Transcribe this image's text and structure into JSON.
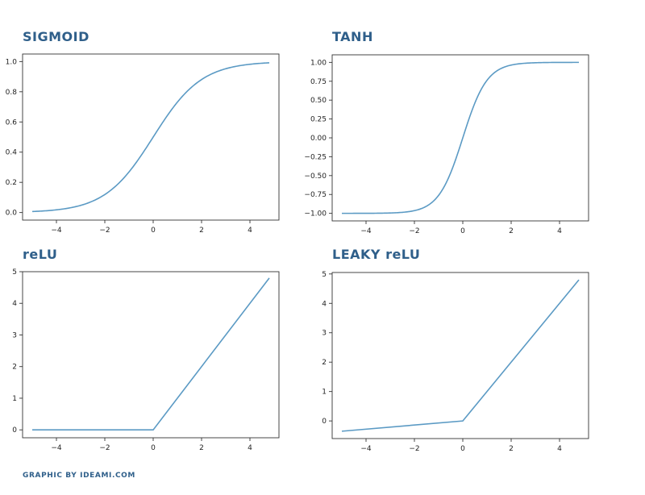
{
  "footer": "GRAPHIC BY IDEAMI.COM",
  "chart_data": [
    {
      "type": "line",
      "title": "SIGMOID",
      "function": "sigmoid",
      "xlim": [
        -5.4,
        5.2
      ],
      "ylim": [
        -0.05,
        1.05
      ],
      "x_range": [
        -5,
        4.8
      ],
      "xticks": [
        -4,
        -2,
        0,
        2,
        4
      ],
      "yticks": [
        0.0,
        0.2,
        0.4,
        0.6,
        0.8,
        1.0
      ],
      "xtick_labels": [
        "−4",
        "−2",
        "0",
        "2",
        "4"
      ],
      "ytick_labels": [
        "0.0",
        "0.2",
        "0.4",
        "0.6",
        "0.8",
        "1.0"
      ],
      "line_color": "#5b9ac4"
    },
    {
      "type": "line",
      "title": "TANH",
      "function": "tanh",
      "xlim": [
        -5.4,
        5.2
      ],
      "ylim": [
        -1.1,
        1.1
      ],
      "x_range": [
        -5,
        4.8
      ],
      "xticks": [
        -4,
        -2,
        0,
        2,
        4
      ],
      "yticks": [
        -1.0,
        -0.75,
        -0.5,
        -0.25,
        0.0,
        0.25,
        0.5,
        0.75,
        1.0
      ],
      "xtick_labels": [
        "−4",
        "−2",
        "0",
        "2",
        "4"
      ],
      "ytick_labels": [
        "−1.00",
        "−0.75",
        "−0.50",
        "−0.25",
        "0.00",
        "0.25",
        "0.50",
        "0.75",
        "1.00"
      ],
      "line_color": "#5b9ac4"
    },
    {
      "type": "line",
      "title": "reLU",
      "function": "relu",
      "xlim": [
        -5.4,
        5.2
      ],
      "ylim": [
        -0.25,
        5.0
      ],
      "x": [
        -5,
        0,
        4.8
      ],
      "y": [
        0,
        0,
        4.8
      ],
      "xticks": [
        -4,
        -2,
        0,
        2,
        4
      ],
      "yticks": [
        0,
        1,
        2,
        3,
        4,
        5
      ],
      "xtick_labels": [
        "−4",
        "−2",
        "0",
        "2",
        "4"
      ],
      "ytick_labels": [
        "0",
        "1",
        "2",
        "3",
        "4",
        "5"
      ],
      "line_color": "#5b9ac4"
    },
    {
      "type": "line",
      "title": "LEAKY reLU",
      "function": "leaky_relu",
      "xlim": [
        -5.4,
        5.2
      ],
      "ylim": [
        -0.6,
        5.05
      ],
      "x": [
        -5,
        0,
        4.8
      ],
      "y": [
        -0.35,
        0,
        4.8
      ],
      "xticks": [
        -4,
        -2,
        0,
        2,
        4
      ],
      "yticks": [
        0,
        1,
        2,
        3,
        4,
        5
      ],
      "xtick_labels": [
        "−4",
        "−2",
        "0",
        "2",
        "4"
      ],
      "ytick_labels": [
        "0",
        "1",
        "2",
        "3",
        "4",
        "5"
      ],
      "line_color": "#5b9ac4"
    }
  ]
}
